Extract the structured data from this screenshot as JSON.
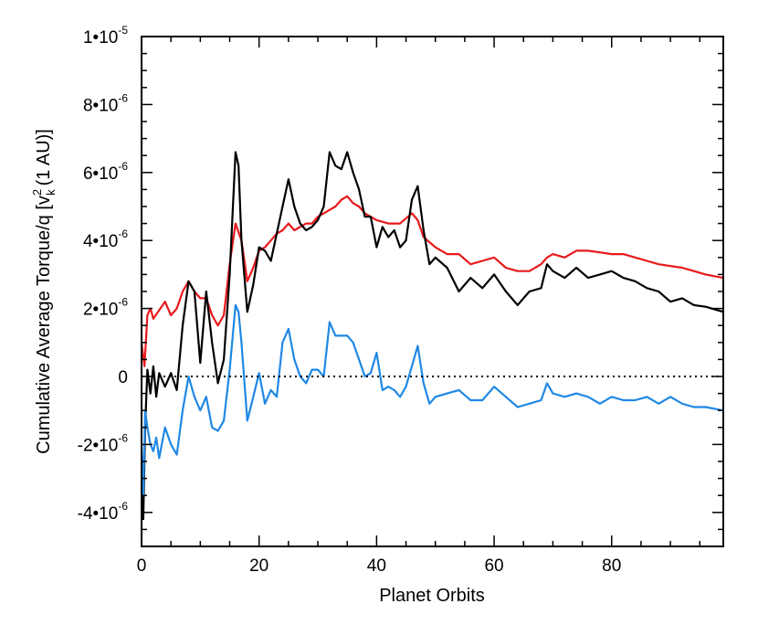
{
  "chart_data": {
    "type": "line",
    "xlabel": "Planet Orbits",
    "ylabel": {
      "prefix": "Cumulative Average Torque/q [v",
      "sup": "2",
      "sub": "k",
      "suffix": "(1 AU)]"
    },
    "xlim": [
      0,
      99
    ],
    "ylim": [
      -5e-06,
      1e-05
    ],
    "x_ticks": [
      {
        "value": 0,
        "label": "0"
      },
      {
        "value": 20,
        "label": "20"
      },
      {
        "value": 40,
        "label": "40"
      },
      {
        "value": 60,
        "label": "60"
      },
      {
        "value": 80,
        "label": "80"
      }
    ],
    "y_ticks": [
      {
        "value": -4e-06,
        "mant": "-4•",
        "exp": "-6"
      },
      {
        "value": -2e-06,
        "mant": "-2•",
        "exp": "-6"
      },
      {
        "value": 0,
        "mant": "0",
        "exp": ""
      },
      {
        "value": 2e-06,
        "mant": "2•",
        "exp": "-6"
      },
      {
        "value": 4e-06,
        "mant": "4•",
        "exp": "-6"
      },
      {
        "value": 6e-06,
        "mant": "6•",
        "exp": "-6"
      },
      {
        "value": 8e-06,
        "mant": "8•",
        "exp": "-6"
      },
      {
        "value": 1e-05,
        "mant": "1•",
        "exp": "-5"
      }
    ],
    "reference_line": {
      "y": 0,
      "style": "dotted"
    },
    "grid": false,
    "series": [
      {
        "color": "#e8191c",
        "x": [
          0.0,
          0.5,
          1,
          1.5,
          2,
          3,
          4,
          5,
          6,
          7,
          8,
          9,
          10,
          11,
          12,
          13,
          14,
          15,
          16,
          17,
          18,
          19,
          20,
          21,
          22,
          23,
          24,
          25,
          26,
          27,
          28,
          29,
          30,
          31,
          32,
          33,
          34,
          35,
          36,
          37,
          38,
          39,
          40,
          42,
          44,
          46,
          47,
          48,
          50,
          52,
          54,
          56,
          58,
          60,
          62,
          64,
          66,
          68,
          69,
          70,
          72,
          74,
          76,
          78,
          80,
          82,
          84,
          86,
          88,
          90,
          92,
          94,
          96,
          99
        ],
        "y": [
          1e-06,
          3e-07,
          1.8e-06,
          2e-06,
          1.7e-06,
          1.95e-06,
          2.2e-06,
          1.8e-06,
          2e-06,
          2.5e-06,
          2.8e-06,
          2.5e-06,
          2.3e-06,
          2.3e-06,
          1.8e-06,
          1.5e-06,
          1.8e-06,
          3.3e-06,
          4.5e-06,
          4e-06,
          2.8e-06,
          3.2e-06,
          3.7e-06,
          3.8e-06,
          4e-06,
          4.2e-06,
          4.3e-06,
          4.5e-06,
          4.3e-06,
          4.4e-06,
          4.5e-06,
          4.5e-06,
          4.7e-06,
          4.8e-06,
          4.9e-06,
          5e-06,
          5.2e-06,
          5.3e-06,
          5.1e-06,
          5e-06,
          4.8e-06,
          4.7e-06,
          4.6e-06,
          4.5e-06,
          4.5e-06,
          4.8e-06,
          4.6e-06,
          4.1e-06,
          3.8e-06,
          3.6e-06,
          3.6e-06,
          3.3e-06,
          3.4e-06,
          3.5e-06,
          3.2e-06,
          3.1e-06,
          3.1e-06,
          3.3e-06,
          3.5e-06,
          3.6e-06,
          3.5e-06,
          3.7e-06,
          3.7e-06,
          3.65e-06,
          3.6e-06,
          3.6e-06,
          3.5e-06,
          3.4e-06,
          3.3e-06,
          3.25e-06,
          3.2e-06,
          3.1e-06,
          3e-06,
          2.9e-06
        ]
      },
      {
        "color": "#000000",
        "x": [
          0.0,
          0.3,
          0.6,
          1,
          1.5,
          2,
          2.5,
          3,
          4,
          5,
          6,
          7,
          8,
          9,
          10,
          11,
          12,
          13,
          14,
          15,
          16,
          16.5,
          17,
          18,
          19,
          20,
          21,
          22,
          23,
          24,
          25,
          26,
          27,
          28,
          29,
          30,
          31,
          32,
          33,
          34,
          35,
          36,
          37,
          38,
          39,
          40,
          41,
          42,
          43,
          44,
          45,
          46,
          47,
          48,
          49,
          50,
          52,
          54,
          56,
          58,
          60,
          62,
          64,
          66,
          68,
          69,
          70,
          72,
          74,
          76,
          78,
          80,
          82,
          84,
          86,
          88,
          90,
          92,
          94,
          96,
          99
        ],
        "y": [
          -3.5e-06,
          -4.2e-06,
          -1.5e-06,
          2e-07,
          -5e-07,
          3e-07,
          -6e-07,
          1e-07,
          -3e-07,
          1e-07,
          -4e-07,
          1.5e-06,
          2.8e-06,
          2.5e-06,
          4e-07,
          2.5e-06,
          1e-06,
          -2e-07,
          5e-07,
          3e-06,
          6.6e-06,
          6.2e-06,
          4e-06,
          1.9e-06,
          2.7e-06,
          3.8e-06,
          3.7e-06,
          3.4e-06,
          4.2e-06,
          5e-06,
          5.8e-06,
          5e-06,
          4.5e-06,
          4.3e-06,
          4.4e-06,
          4.6e-06,
          5e-06,
          6.6e-06,
          6.2e-06,
          6.1e-06,
          6.6e-06,
          6e-06,
          5.5e-06,
          4.7e-06,
          4.7e-06,
          3.8e-06,
          4.4e-06,
          4.1e-06,
          4.3e-06,
          3.8e-06,
          4e-06,
          5.2e-06,
          5.6e-06,
          4.3e-06,
          3.3e-06,
          3.5e-06,
          3.2e-06,
          2.5e-06,
          2.9e-06,
          2.6e-06,
          3e-06,
          2.5e-06,
          2.1e-06,
          2.5e-06,
          2.6e-06,
          3.3e-06,
          3.1e-06,
          2.9e-06,
          3.2e-06,
          2.9e-06,
          3e-06,
          3.1e-06,
          2.9e-06,
          2.8e-06,
          2.6e-06,
          2.5e-06,
          2.2e-06,
          2.3e-06,
          2.1e-06,
          2.05e-06,
          1.9e-06
        ]
      },
      {
        "color": "#1f88e5",
        "x": [
          0.0,
          0.3,
          0.6,
          1,
          1.5,
          2,
          2.5,
          3,
          4,
          5,
          6,
          7,
          8,
          9,
          10,
          11,
          12,
          13,
          14,
          15,
          16,
          16.5,
          17,
          18,
          19,
          20,
          21,
          22,
          23,
          24,
          25,
          26,
          27,
          28,
          29,
          30,
          31,
          32,
          33,
          34,
          35,
          36,
          37,
          38,
          39,
          40,
          41,
          42,
          43,
          44,
          45,
          46,
          47,
          48,
          49,
          50,
          52,
          54,
          56,
          58,
          60,
          62,
          64,
          66,
          68,
          69,
          70,
          72,
          74,
          76,
          78,
          80,
          82,
          84,
          86,
          88,
          90,
          92,
          94,
          96,
          99
        ],
        "y": [
          -2e-06,
          -3.5e-06,
          -1e-06,
          -1.5e-06,
          -2e-06,
          -2.2e-06,
          -1.8e-06,
          -2.4e-06,
          -1.5e-06,
          -2e-06,
          -2.3e-06,
          -1e-06,
          0.0,
          -6e-07,
          -1e-06,
          -6e-07,
          -1.5e-06,
          -1.6e-06,
          -1.3e-06,
          2e-07,
          2.1e-06,
          1.9e-06,
          1e-06,
          -1.3e-06,
          -6e-07,
          1e-07,
          -8e-07,
          -4e-07,
          -6e-07,
          1e-06,
          1.4e-06,
          5e-07,
          0.0,
          -2e-07,
          2e-07,
          2e-07,
          0.0,
          1.6e-06,
          1.2e-06,
          1.2e-06,
          1.2e-06,
          1e-06,
          5e-07,
          0.0,
          1e-07,
          7e-07,
          -4e-07,
          -3e-07,
          -4e-07,
          -6e-07,
          -3e-07,
          3e-07,
          9e-07,
          -2e-07,
          -8e-07,
          -6e-07,
          -5e-07,
          -4e-07,
          -7e-07,
          -7e-07,
          -3e-07,
          -6e-07,
          -9e-07,
          -8e-07,
          -7e-07,
          -2e-07,
          -5e-07,
          -6e-07,
          -5e-07,
          -6e-07,
          -8e-07,
          -6e-07,
          -7e-07,
          -7e-07,
          -6e-07,
          -8e-07,
          -6e-07,
          -8e-07,
          -9e-07,
          -9e-07,
          -1e-06
        ]
      }
    ]
  }
}
